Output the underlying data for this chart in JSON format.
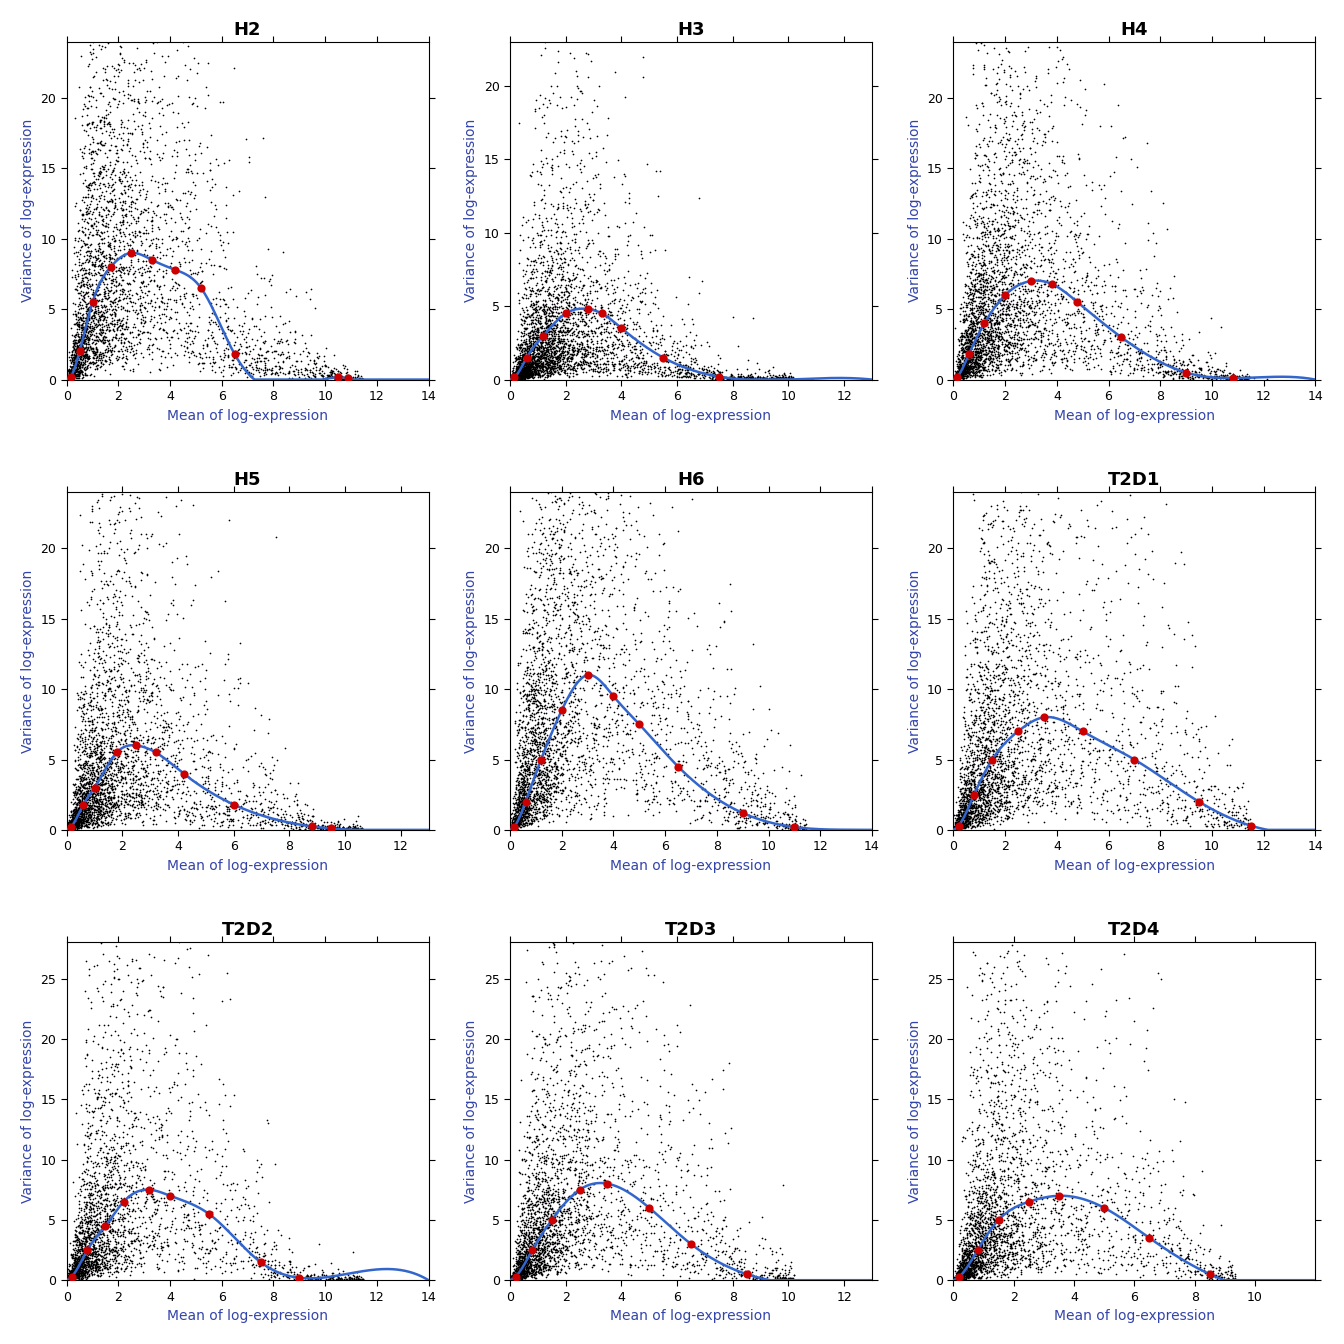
{
  "panels": [
    {
      "title": "H2",
      "xlim": [
        0,
        14
      ],
      "ylim": [
        0,
        24
      ],
      "xticks": [
        0,
        2,
        4,
        6,
        8,
        10,
        12,
        14
      ],
      "yticks": [
        0,
        5,
        10,
        15,
        20
      ],
      "seed": 42,
      "n_genes": 4000,
      "mean_scale": 1.2,
      "var_scale": 1.0,
      "spike_x": [
        0.15,
        0.5,
        1.0,
        1.7,
        2.5,
        3.3,
        4.2,
        5.2,
        6.5,
        10.5,
        10.9
      ],
      "spike_y": [
        0.2,
        2.0,
        5.5,
        8.0,
        9.0,
        8.5,
        7.8,
        6.5,
        1.8,
        0.15,
        0.08
      ],
      "x_max_data": 13.5
    },
    {
      "title": "H3",
      "xlim": [
        0,
        13
      ],
      "ylim": [
        0,
        23
      ],
      "xticks": [
        0,
        2,
        4,
        6,
        8,
        10,
        12
      ],
      "yticks": [
        0,
        5,
        10,
        15,
        20
      ],
      "seed": 123,
      "n_genes": 4000,
      "mean_scale": 1.0,
      "var_scale": 0.6,
      "spike_x": [
        0.15,
        0.6,
        1.2,
        2.0,
        2.8,
        3.3,
        4.0,
        5.5,
        7.5
      ],
      "spike_y": [
        0.15,
        1.5,
        3.0,
        4.5,
        4.8,
        4.5,
        3.5,
        1.5,
        0.2
      ],
      "x_max_data": 12.0
    },
    {
      "title": "H4",
      "xlim": [
        0,
        14
      ],
      "ylim": [
        0,
        24
      ],
      "xticks": [
        0,
        2,
        4,
        6,
        8,
        10,
        12,
        14
      ],
      "yticks": [
        0,
        5,
        10,
        15,
        20
      ],
      "seed": 7,
      "n_genes": 4000,
      "mean_scale": 1.2,
      "var_scale": 0.85,
      "spike_x": [
        0.15,
        0.6,
        1.2,
        2.0,
        3.0,
        3.8,
        4.8,
        6.5,
        9.0,
        10.8
      ],
      "spike_y": [
        0.2,
        1.8,
        4.0,
        6.0,
        7.0,
        6.8,
        5.5,
        3.0,
        0.5,
        0.1
      ],
      "x_max_data": 13.5
    },
    {
      "title": "H5",
      "xlim": [
        0,
        13
      ],
      "ylim": [
        0,
        24
      ],
      "xticks": [
        0,
        2,
        4,
        6,
        8,
        10,
        12
      ],
      "yticks": [
        0,
        5,
        10,
        15,
        20
      ],
      "seed": 55,
      "n_genes": 3500,
      "mean_scale": 1.0,
      "var_scale": 0.85,
      "spike_x": [
        0.15,
        0.6,
        1.0,
        1.8,
        2.5,
        3.2,
        4.2,
        6.0,
        8.8,
        9.5
      ],
      "spike_y": [
        0.2,
        1.8,
        3.0,
        5.5,
        6.0,
        5.5,
        4.0,
        1.8,
        0.25,
        0.1
      ],
      "x_max_data": 12.5
    },
    {
      "title": "H6",
      "xlim": [
        0,
        14
      ],
      "ylim": [
        0,
        24
      ],
      "xticks": [
        0,
        2,
        4,
        6,
        8,
        10,
        12,
        14
      ],
      "yticks": [
        0,
        5,
        10,
        15,
        20
      ],
      "seed": 88,
      "n_genes": 4000,
      "mean_scale": 1.2,
      "var_scale": 1.2,
      "spike_x": [
        0.15,
        0.6,
        1.2,
        2.0,
        3.0,
        4.0,
        5.0,
        6.5,
        9.0,
        11.0
      ],
      "spike_y": [
        0.2,
        2.0,
        5.0,
        8.5,
        11.0,
        9.5,
        7.5,
        4.5,
        1.2,
        0.2
      ],
      "x_max_data": 13.5
    },
    {
      "title": "T2D1",
      "xlim": [
        0,
        14
      ],
      "ylim": [
        0,
        24
      ],
      "xticks": [
        0,
        2,
        4,
        6,
        8,
        10,
        12,
        14
      ],
      "yticks": [
        0,
        5,
        10,
        15,
        20
      ],
      "seed": 13,
      "n_genes": 3500,
      "mean_scale": 1.2,
      "var_scale": 0.9,
      "spike_x": [
        0.2,
        0.8,
        1.5,
        2.5,
        3.5,
        5.0,
        7.0,
        9.5,
        11.5
      ],
      "spike_y": [
        0.3,
        2.5,
        5.0,
        7.0,
        8.0,
        7.0,
        5.0,
        2.0,
        0.3
      ],
      "x_max_data": 13.5
    },
    {
      "title": "T2D2",
      "xlim": [
        0,
        14
      ],
      "ylim": [
        0,
        28
      ],
      "xticks": [
        0,
        2,
        4,
        6,
        8,
        10,
        12,
        14
      ],
      "yticks": [
        0,
        5,
        10,
        15,
        20,
        25
      ],
      "seed": 21,
      "n_genes": 3000,
      "mean_scale": 1.0,
      "var_scale": 0.9,
      "spike_x": [
        0.2,
        0.8,
        1.5,
        2.2,
        3.2,
        4.0,
        5.5,
        7.5,
        9.0
      ],
      "spike_y": [
        0.3,
        2.5,
        4.5,
        6.5,
        7.5,
        7.0,
        5.5,
        1.5,
        0.2
      ],
      "x_max_data": 13.5
    },
    {
      "title": "T2D3",
      "xlim": [
        0,
        13
      ],
      "ylim": [
        0,
        28
      ],
      "xticks": [
        0,
        2,
        4,
        6,
        8,
        10,
        12
      ],
      "yticks": [
        0,
        5,
        10,
        15,
        20,
        25
      ],
      "seed": 33,
      "n_genes": 3200,
      "mean_scale": 1.0,
      "var_scale": 0.9,
      "spike_x": [
        0.2,
        0.8,
        1.5,
        2.5,
        3.5,
        5.0,
        6.5,
        8.5
      ],
      "spike_y": [
        0.3,
        2.5,
        5.0,
        7.5,
        8.0,
        6.0,
        3.0,
        0.5
      ],
      "x_max_data": 12.0
    },
    {
      "title": "T2D4",
      "xlim": [
        0,
        12
      ],
      "ylim": [
        0,
        28
      ],
      "xticks": [
        0,
        2,
        4,
        6,
        8,
        10
      ],
      "yticks": [
        0,
        5,
        10,
        15,
        20,
        25
      ],
      "seed": 99,
      "n_genes": 3200,
      "mean_scale": 0.9,
      "var_scale": 0.85,
      "spike_x": [
        0.2,
        0.8,
        1.5,
        2.5,
        3.5,
        5.0,
        6.5,
        8.5
      ],
      "spike_y": [
        0.3,
        2.5,
        5.0,
        6.5,
        7.0,
        6.0,
        3.5,
        0.5
      ],
      "x_max_data": 11.0
    }
  ],
  "xlabel": "Mean of log-expression",
  "ylabel": "Variance of log-expression",
  "point_color": "#000000",
  "spike_color": "#CC0000",
  "trend_color": "#3366CC",
  "background_color": "#FFFFFF",
  "point_size": 1.5,
  "spike_size": 35,
  "trend_linewidth": 1.8,
  "title_fontsize": 13,
  "label_fontsize": 10,
  "tick_fontsize": 9,
  "axis_label_color": "#3344AA",
  "title_color": "#000000"
}
